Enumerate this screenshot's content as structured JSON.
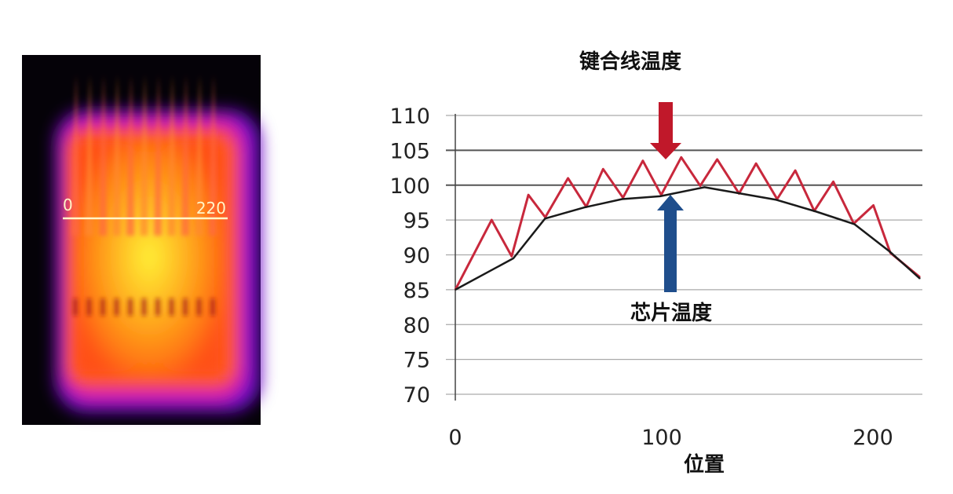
{
  "thermal_image": {
    "scale_start_label": "0",
    "scale_end_label": "220"
  },
  "chart_data": {
    "type": "line",
    "title": "",
    "xlabel": "位置",
    "ylabel": "",
    "xlim": [
      0,
      220
    ],
    "ylim": [
      70,
      110
    ],
    "x_ticks": [
      "0",
      "100",
      "200"
    ],
    "y_ticks": [
      "110",
      "105",
      "100",
      "95",
      "90",
      "85",
      "80",
      "75",
      "70"
    ],
    "grid": true,
    "annotations": [
      {
        "text": "键合线温度",
        "arrow": "down",
        "color": "#c0182a",
        "x": 99,
        "y": 104
      },
      {
        "text": "芯片温度",
        "arrow": "up",
        "color": "#1f4e8c",
        "x": 100,
        "y": 99.5
      }
    ],
    "series": [
      {
        "color": "#c8283c",
        "x": [
          0,
          17.2,
          26.7,
          34.6,
          42.6,
          53.4,
          62,
          70,
          79.4,
          88.8,
          97.5,
          107,
          116,
          124,
          134.4,
          142.4,
          152.4,
          161,
          170,
          179,
          188.7,
          198,
          206,
          220
        ],
        "y": [
          85,
          95.0,
          89.8,
          98.6,
          95.4,
          101.0,
          96.9,
          102.3,
          98.2,
          103.5,
          98.6,
          104.0,
          99.9,
          103.7,
          98.8,
          103.1,
          98.0,
          102.1,
          96.3,
          100.5,
          94.5,
          97.1,
          90.3,
          86.8
        ]
      },
      {
        "color": "#1a1a1a",
        "x": [
          0,
          27.5,
          42.5,
          61,
          79,
          97,
          118,
          135,
          152,
          171,
          189,
          206,
          220
        ],
        "y": [
          85,
          89.5,
          95.2,
          96.8,
          98.0,
          98.4,
          99.7,
          98.8,
          97.9,
          96.2,
          94.4,
          90.4,
          86.6
        ]
      }
    ]
  }
}
